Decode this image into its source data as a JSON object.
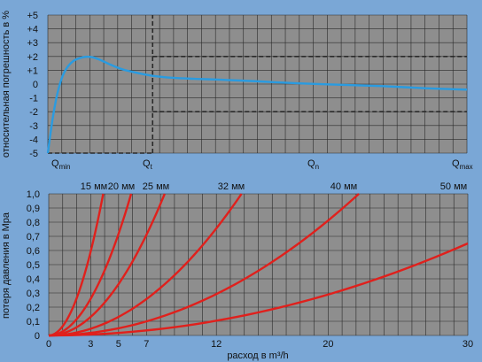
{
  "colors": {
    "background": "#7aa7d6",
    "plot_area": "#8e8e8e",
    "grid": "#2a2a2a",
    "dashed": "#2a2a2a",
    "error_curve": "#2a9be0",
    "pressure_curves": "#e0201c"
  },
  "chart_data": [
    {
      "type": "line",
      "ylabel": "относительная погрешность в %",
      "ylim": [
        -5,
        5
      ],
      "y_ticks": [
        "+5",
        "+4",
        "+3",
        "+2",
        "+1",
        "0",
        "-1",
        "-2",
        "-3",
        "-4",
        "-5"
      ],
      "x_labels": [
        {
          "base": "Q",
          "sub": "min"
        },
        {
          "base": "Q",
          "sub": "t"
        },
        {
          "base": "Q",
          "sub": "n"
        },
        {
          "base": "Q",
          "sub": "max"
        }
      ],
      "grid": true,
      "series": [
        {
          "x": [
            0.0,
            0.012,
            0.025,
            0.04,
            0.06,
            0.085,
            0.105,
            0.125,
            0.15,
            0.18,
            0.215,
            0.25,
            0.3,
            0.35,
            0.4,
            0.5,
            0.6,
            0.7,
            0.8,
            0.9,
            1.0
          ],
          "y": [
            -5.0,
            -2.4,
            -0.4,
            0.9,
            1.65,
            1.95,
            1.95,
            1.75,
            1.4,
            1.05,
            0.8,
            0.6,
            0.45,
            0.38,
            0.33,
            0.2,
            0.05,
            -0.05,
            -0.15,
            -0.3,
            -0.4
          ]
        }
      ],
      "dashed_guides": [
        {
          "from": [
            0.0,
            -5.0
          ],
          "to": [
            0.25,
            -5.0
          ]
        },
        {
          "from": [
            0.25,
            -5.0
          ],
          "to": [
            0.25,
            5.0
          ]
        },
        {
          "from": [
            0.25,
            2.0
          ],
          "to": [
            1.0,
            2.0
          ]
        },
        {
          "from": [
            0.25,
            -2.0
          ],
          "to": [
            1.0,
            -2.0
          ]
        }
      ]
    },
    {
      "type": "line",
      "xlabel": "расход в m³/h",
      "ylabel": "потеря давления в Мра",
      "xlim": [
        0,
        30
      ],
      "ylim": [
        0,
        1.0
      ],
      "x_ticks": [
        0,
        3,
        5,
        7,
        12,
        20,
        30
      ],
      "y_ticks": [
        "0",
        "0,1",
        "0,2",
        "0,3",
        "0,4",
        "0,5",
        "0,6",
        "0,7",
        "0,8",
        "0,9",
        "1,0"
      ],
      "grid": true,
      "series": [
        {
          "name": "15 мм",
          "x": [
            0,
            0.5,
            1,
            1.5,
            2,
            2.5,
            3,
            3.5,
            3.9
          ],
          "y": [
            0,
            0.016,
            0.066,
            0.148,
            0.263,
            0.411,
            0.592,
            0.805,
            1.0
          ]
        },
        {
          "name": "20 мм",
          "x": [
            0,
            1,
            2,
            3,
            4,
            5,
            5.9
          ],
          "y": [
            0,
            0.029,
            0.115,
            0.259,
            0.46,
            0.718,
            1.0
          ]
        },
        {
          "name": "25 мм",
          "x": [
            0,
            1,
            2,
            3,
            4,
            5,
            6,
            7,
            8,
            8.3
          ],
          "y": [
            0,
            0.015,
            0.058,
            0.131,
            0.232,
            0.363,
            0.523,
            0.711,
            0.929,
            1.0
          ]
        },
        {
          "name": "32 мм",
          "x": [
            0,
            2,
            4,
            6,
            8,
            10,
            12,
            13.8
          ],
          "y": [
            0,
            0.021,
            0.084,
            0.189,
            0.336,
            0.525,
            0.756,
            1.0
          ]
        },
        {
          "name": "40 мм",
          "x": [
            0,
            3,
            6,
            9,
            12,
            15,
            18,
            21,
            22.2
          ],
          "y": [
            0,
            0.018,
            0.073,
            0.164,
            0.292,
            0.457,
            0.657,
            0.895,
            1.0
          ]
        },
        {
          "name": "50 мм",
          "x": [
            0,
            5,
            10,
            15,
            20,
            25,
            30
          ],
          "y": [
            0,
            0.018,
            0.072,
            0.163,
            0.289,
            0.451,
            0.65
          ]
        }
      ]
    }
  ]
}
